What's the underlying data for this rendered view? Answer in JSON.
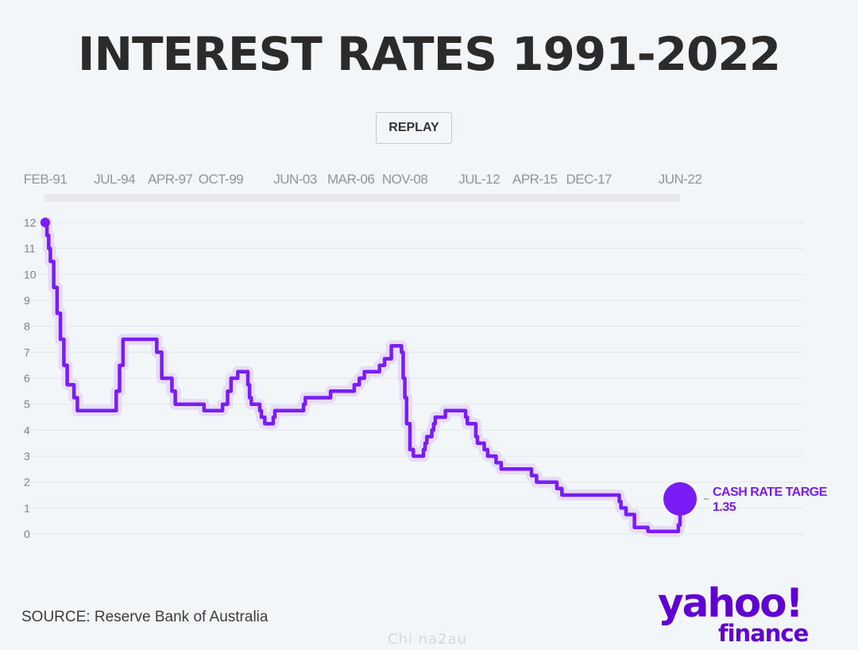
{
  "header": {
    "title": "INTEREST RATES 1991-2022"
  },
  "controls": {
    "replay_label": "REPLAY"
  },
  "colors": {
    "line": "#7a1cf6",
    "halo": "#e7dcf8",
    "title": "#2b2b2b",
    "logo": "#6001d2"
  },
  "chart_data": {
    "type": "line",
    "title": "INTEREST RATES 1991-2022",
    "xlabel": "",
    "ylabel": "",
    "x_tick_labels": [
      "FEB-91",
      "JUL-94",
      "APR-97",
      "OCT-99",
      "JUN-03",
      "MAR-06",
      "NOV-08",
      "JUL-12",
      "APR-15",
      "DEC-17",
      "JUN-22"
    ],
    "y_ticks": [
      0,
      1,
      2,
      3,
      4,
      5,
      6,
      7,
      8,
      9,
      10,
      11,
      12
    ],
    "ylim": [
      0,
      12
    ],
    "xlim": [
      "1991-02",
      "2022-06"
    ],
    "grid": true,
    "series": [
      {
        "name": "Cash rate target",
        "x": [
          "1991-02",
          "1991-03",
          "1991-04",
          "1991-05",
          "1991-06",
          "1991-07",
          "1991-09",
          "1991-11",
          "1992-01",
          "1992-03",
          "1992-05",
          "1992-07",
          "1992-09",
          "1993-03",
          "1993-07",
          "1994-08",
          "1994-10",
          "1994-12",
          "1996-07",
          "1996-08",
          "1996-11",
          "1997-05",
          "1997-07",
          "1997-12",
          "1998-12",
          "1999-11",
          "2000-02",
          "2000-04",
          "2000-08",
          "2001-02",
          "2001-03",
          "2001-04",
          "2001-09",
          "2001-10",
          "2001-12",
          "2002-05",
          "2002-06",
          "2003-11",
          "2003-12",
          "2005-03",
          "2006-05",
          "2006-08",
          "2006-11",
          "2007-08",
          "2007-11",
          "2008-03",
          "2008-09",
          "2008-10",
          "2008-11",
          "2008-12",
          "2009-02",
          "2009-04",
          "2009-10",
          "2009-11",
          "2009-12",
          "2010-03",
          "2010-04",
          "2010-05",
          "2010-11",
          "2011-11",
          "2011-12",
          "2012-05",
          "2012-06",
          "2012-10",
          "2012-12",
          "2013-05",
          "2013-08",
          "2015-02",
          "2015-05",
          "2016-05",
          "2016-08",
          "2019-06",
          "2019-07",
          "2019-10",
          "2020-03",
          "2020-11",
          "2022-05",
          "2022-06"
        ],
        "y": [
          12.0,
          11.5,
          11.0,
          10.5,
          10.5,
          9.5,
          8.5,
          7.5,
          6.5,
          5.75,
          5.75,
          5.25,
          4.75,
          4.75,
          4.75,
          5.5,
          6.5,
          7.5,
          7.5,
          7.0,
          6.0,
          5.5,
          5.0,
          5.0,
          4.75,
          5.0,
          5.5,
          6.0,
          6.25,
          5.75,
          5.25,
          5.0,
          4.75,
          4.5,
          4.25,
          4.5,
          4.75,
          5.0,
          5.25,
          5.5,
          5.75,
          6.0,
          6.25,
          6.5,
          6.75,
          7.25,
          7.0,
          6.0,
          5.25,
          4.25,
          3.25,
          3.0,
          3.25,
          3.5,
          3.75,
          4.0,
          4.25,
          4.5,
          4.75,
          4.5,
          4.25,
          3.75,
          3.5,
          3.25,
          3.0,
          2.75,
          2.5,
          2.25,
          2.0,
          1.75,
          1.5,
          1.25,
          1.0,
          0.75,
          0.25,
          0.1,
          0.35,
          1.35
        ]
      }
    ],
    "annotation": {
      "label": "CASH RATE TARGE",
      "value": "1.35"
    }
  },
  "footer": {
    "source": "SOURCE: Reserve Bank of Australia",
    "logo_top": "yahoo!",
    "logo_bottom": "finance",
    "watermark": "Chi na2au"
  }
}
